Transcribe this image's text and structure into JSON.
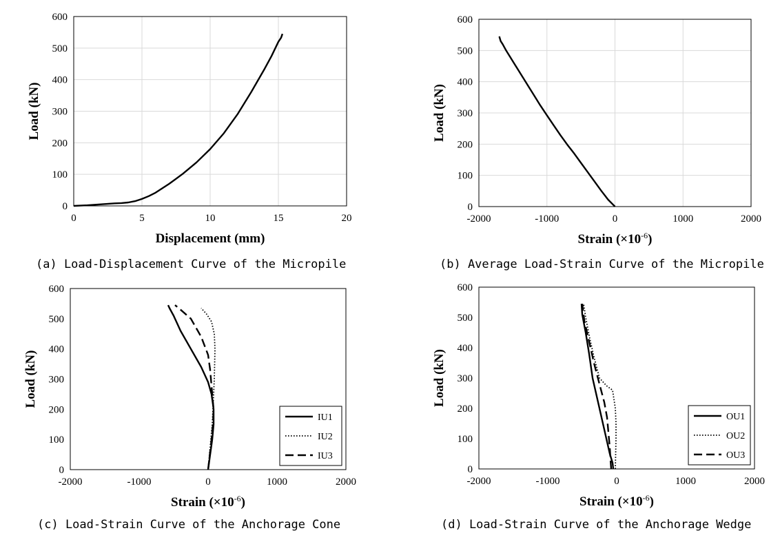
{
  "charts": [
    {
      "caption": "(a) Load-Displacement Curve of the Micropile",
      "xlabel": "Displacement (mm)",
      "ylabel": "Load (kN)",
      "xlim": [
        0,
        20
      ],
      "ylim": [
        0,
        600
      ],
      "xticks": [
        0,
        5,
        10,
        15,
        20
      ],
      "yticks": [
        0,
        100,
        200,
        300,
        400,
        500,
        600
      ],
      "legend": null
    },
    {
      "caption": "(b) Average Load-Strain Curve of the Micropile",
      "xlabel_main": "Strain (×10",
      "xlabel_exp": "-6",
      "xlabel_close": ")",
      "ylabel": "Load (kN)",
      "xlim": [
        -2000,
        2000
      ],
      "ylim": [
        0,
        600
      ],
      "xticks": [
        -2000,
        -1000,
        0,
        1000,
        2000
      ],
      "yticks": [
        0,
        100,
        200,
        300,
        400,
        500,
        600
      ],
      "legend": null
    },
    {
      "caption": "(c) Load-Strain Curve of the Anchorage Cone",
      "xlabel_main": "Strain (×10",
      "xlabel_exp": "-6",
      "xlabel_close": ")",
      "ylabel": "Load (kN)",
      "xlim": [
        -2000,
        2000
      ],
      "ylim": [
        0,
        600
      ],
      "xticks": [
        -2000,
        -1000,
        0,
        1000,
        2000
      ],
      "yticks": [
        0,
        100,
        200,
        300,
        400,
        500,
        600
      ],
      "legend": "inside-right"
    },
    {
      "caption": "(d) Load-Strain Curve of the Anchorage Wedge",
      "xlabel_main": "Strain (×10",
      "xlabel_exp": "-6",
      "xlabel_close": ")",
      "ylabel": "Load (kN)",
      "xlim": [
        -2000,
        2000
      ],
      "ylim": [
        0,
        600
      ],
      "xticks": [
        -2000,
        -1000,
        0,
        1000,
        2000
      ],
      "yticks": [
        0,
        100,
        200,
        300,
        400,
        500,
        600
      ],
      "legend": "inside-right"
    }
  ],
  "chart_data": [
    {
      "type": "line",
      "title": "(a) Load-Displacement Curve of the Micropile",
      "xlabel": "Displacement (mm)",
      "ylabel": "Load (kN)",
      "xlim": [
        0,
        20
      ],
      "ylim": [
        0,
        600
      ],
      "grid": true,
      "series": [
        {
          "style": "solid",
          "x": [
            0,
            1,
            2,
            3,
            3.5,
            4,
            4.5,
            5,
            5.5,
            6,
            7,
            8,
            9,
            10,
            11,
            12,
            13,
            14,
            14.5,
            15,
            15.2,
            15.3
          ],
          "y": [
            0,
            2,
            5,
            8,
            9,
            11,
            15,
            22,
            31,
            42,
            70,
            102,
            138,
            180,
            230,
            290,
            360,
            435,
            475,
            520,
            533,
            545
          ]
        }
      ]
    },
    {
      "type": "line",
      "title": "(b) Average Load-Strain Curve of the Micropile",
      "xlabel": "Strain (×10-6)",
      "ylabel": "Load (kN)",
      "xlim": [
        -2000,
        2000
      ],
      "ylim": [
        0,
        600
      ],
      "grid": true,
      "series": [
        {
          "style": "solid",
          "x": [
            0,
            -100,
            -200,
            -300,
            -400,
            -500,
            -600,
            -700,
            -800,
            -900,
            -1000,
            -1100,
            -1200,
            -1300,
            -1400,
            -1500,
            -1600,
            -1650,
            -1680,
            -1700
          ],
          "y": [
            0,
            22,
            50,
            80,
            110,
            140,
            170,
            198,
            228,
            260,
            292,
            325,
            360,
            395,
            430,
            465,
            500,
            520,
            530,
            545
          ]
        }
      ]
    },
    {
      "type": "line",
      "title": "(c) Load-Strain Curve of the Anchorage Cone",
      "xlabel": "Strain (×10-6)",
      "ylabel": "Load (kN)",
      "xlim": [
        -2000,
        2000
      ],
      "ylim": [
        0,
        600
      ],
      "grid": false,
      "series": [
        {
          "name": "IU1",
          "style": "solid",
          "x": [
            0,
            30,
            60,
            80,
            80,
            50,
            0,
            -100,
            -250,
            -400,
            -500,
            -560,
            -580
          ],
          "y": [
            0,
            50,
            100,
            150,
            200,
            250,
            290,
            340,
            400,
            460,
            510,
            535,
            545
          ]
        },
        {
          "name": "IU2",
          "style": "dotted",
          "x": [
            0,
            20,
            40,
            60,
            70,
            80,
            90,
            100,
            90,
            50,
            -20,
            -80,
            -100
          ],
          "y": [
            0,
            50,
            100,
            150,
            200,
            250,
            300,
            400,
            450,
            490,
            515,
            530,
            535
          ]
        },
        {
          "name": "IU3",
          "style": "dashed",
          "x": [
            0,
            25,
            50,
            70,
            80,
            60,
            30,
            0,
            -100,
            -250,
            -400,
            -480
          ],
          "y": [
            0,
            50,
            100,
            150,
            200,
            250,
            330,
            380,
            440,
            500,
            530,
            545
          ]
        }
      ]
    },
    {
      "type": "line",
      "title": "(d) Load-Strain Curve of the Anchorage Wedge",
      "xlabel": "Strain (×10-6)",
      "ylabel": "Load (kN)",
      "xlim": [
        -2000,
        2000
      ],
      "ylim": [
        0,
        600
      ],
      "grid": false,
      "series": [
        {
          "name": "OU1",
          "style": "solid",
          "x": [
            -50,
            -60,
            -100,
            -150,
            -200,
            -250,
            -300,
            -350,
            -400,
            -450,
            -500,
            -510
          ],
          "y": [
            0,
            20,
            50,
            100,
            150,
            200,
            250,
            300,
            380,
            450,
            510,
            545
          ]
        },
        {
          "name": "OU2",
          "style": "dotted",
          "x": [
            -20,
            -15,
            -10,
            -10,
            -20,
            -60,
            -150,
            -250,
            -330,
            -390,
            -450,
            -480
          ],
          "y": [
            0,
            50,
            100,
            150,
            200,
            260,
            275,
            300,
            370,
            430,
            500,
            545
          ]
        },
        {
          "name": "OU3",
          "style": "dashed",
          "x": [
            -80,
            -90,
            -100,
            -120,
            -140,
            -180,
            -250,
            -330,
            -400,
            -470,
            -500
          ],
          "y": [
            0,
            30,
            70,
            120,
            170,
            220,
            280,
            350,
            420,
            490,
            545
          ]
        }
      ]
    }
  ]
}
